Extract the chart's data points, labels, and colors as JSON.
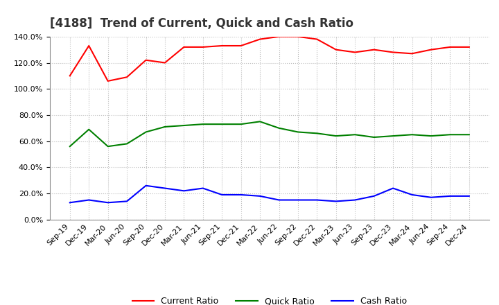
{
  "title": "[4188]  Trend of Current, Quick and Cash Ratio",
  "x_labels": [
    "Sep-19",
    "Dec-19",
    "Mar-20",
    "Jun-20",
    "Sep-20",
    "Dec-20",
    "Mar-21",
    "Jun-21",
    "Sep-21",
    "Dec-21",
    "Mar-22",
    "Jun-22",
    "Sep-22",
    "Dec-22",
    "Mar-23",
    "Jun-23",
    "Sep-23",
    "Dec-23",
    "Mar-24",
    "Jun-24",
    "Sep-24",
    "Dec-24"
  ],
  "current_ratio": [
    1.1,
    1.33,
    1.06,
    1.09,
    1.22,
    1.2,
    1.32,
    1.32,
    1.33,
    1.33,
    1.38,
    1.4,
    1.4,
    1.38,
    1.3,
    1.28,
    1.3,
    1.28,
    1.27,
    1.3,
    1.32,
    1.32
  ],
  "quick_ratio": [
    0.56,
    0.69,
    0.56,
    0.58,
    0.67,
    0.71,
    0.72,
    0.73,
    0.73,
    0.73,
    0.75,
    0.7,
    0.67,
    0.66,
    0.64,
    0.65,
    0.63,
    0.64,
    0.65,
    0.64,
    0.65,
    0.65
  ],
  "cash_ratio": [
    0.13,
    0.15,
    0.13,
    0.14,
    0.26,
    0.24,
    0.22,
    0.24,
    0.19,
    0.19,
    0.18,
    0.15,
    0.15,
    0.15,
    0.14,
    0.15,
    0.18,
    0.24,
    0.19,
    0.17,
    0.18,
    0.18
  ],
  "current_color": "#ff0000",
  "quick_color": "#008000",
  "cash_color": "#0000ff",
  "ylim": [
    0.0,
    1.4
  ],
  "yticks": [
    0.0,
    0.2,
    0.4,
    0.6,
    0.8,
    1.0,
    1.2,
    1.4
  ],
  "background_color": "#ffffff",
  "grid_color": "#bbbbbb",
  "title_fontsize": 12,
  "axis_fontsize": 8,
  "legend_fontsize": 9
}
